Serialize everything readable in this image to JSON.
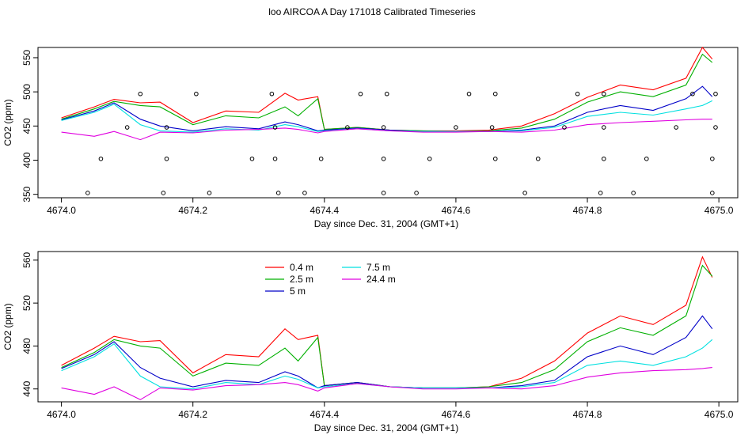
{
  "title": "loo AIRCOA A  Day 171018  Calibrated Timeseries",
  "colors": {
    "0.4 m": "#ff0000",
    "2.5 m": "#00b000",
    "5 m": "#0000c8",
    "7.5 m": "#00e0e0",
    "24.4 m": "#e000e0"
  },
  "chart_data": [
    {
      "type": "line",
      "xlabel": "Day since Dec. 31, 2004 (GMT+1)",
      "ylabel": "CO2 (ppm)",
      "xlim": [
        4674.0,
        4675.0
      ],
      "ylim": [
        345,
        565
      ],
      "xticks": [
        "4674.0",
        "4674.2",
        "4674.4",
        "4674.6",
        "4674.8",
        "4675.0"
      ],
      "yticks": [
        "350",
        "400",
        "450",
        "500",
        "550"
      ],
      "series": [
        {
          "name": "0.4 m",
          "x": [
            4674.0,
            4674.05,
            4674.08,
            4674.12,
            4674.15,
            4674.2,
            4674.25,
            4674.3,
            4674.34,
            4674.36,
            4674.39,
            4674.4,
            4674.45,
            4674.5,
            4674.55,
            4674.6,
            4674.65,
            4674.7,
            4674.75,
            4674.8,
            4674.85,
            4674.9,
            4674.95,
            4674.975,
            4674.99
          ],
          "y": [
            462,
            478,
            489,
            484,
            485,
            455,
            472,
            470,
            498,
            488,
            493,
            445,
            448,
            444,
            443,
            443,
            444,
            450,
            468,
            492,
            510,
            503,
            520,
            565,
            548
          ]
        },
        {
          "name": "2.5 m",
          "x": [
            4674.0,
            4674.05,
            4674.08,
            4674.12,
            4674.15,
            4674.2,
            4674.25,
            4674.3,
            4674.34,
            4674.36,
            4674.39,
            4674.4,
            4674.45,
            4674.5,
            4674.55,
            4674.6,
            4674.65,
            4674.7,
            4674.75,
            4674.8,
            4674.85,
            4674.9,
            4674.95,
            4674.975,
            4674.99
          ],
          "y": [
            460,
            475,
            486,
            480,
            478,
            452,
            465,
            462,
            478,
            465,
            490,
            445,
            448,
            444,
            443,
            442,
            443,
            447,
            460,
            485,
            500,
            493,
            510,
            555,
            543
          ]
        },
        {
          "name": "5 m",
          "x": [
            4674.0,
            4674.05,
            4674.08,
            4674.12,
            4674.15,
            4674.2,
            4674.25,
            4674.3,
            4674.34,
            4674.36,
            4674.39,
            4674.4,
            4674.45,
            4674.5,
            4674.55,
            4674.6,
            4674.65,
            4674.7,
            4674.75,
            4674.8,
            4674.85,
            4674.9,
            4674.95,
            4674.975,
            4674.99
          ],
          "y": [
            459,
            472,
            484,
            460,
            450,
            443,
            449,
            446,
            456,
            452,
            443,
            444,
            447,
            444,
            442,
            442,
            442,
            444,
            450,
            470,
            480,
            473,
            490,
            508,
            493
          ]
        },
        {
          "name": "7.5 m",
          "x": [
            4674.0,
            4674.05,
            4674.08,
            4674.12,
            4674.15,
            4674.2,
            4674.25,
            4674.3,
            4674.34,
            4674.36,
            4674.39,
            4674.4,
            4674.45,
            4674.5,
            4674.55,
            4674.6,
            4674.65,
            4674.7,
            4674.75,
            4674.8,
            4674.85,
            4674.9,
            4674.95,
            4674.975,
            4674.99
          ],
          "y": [
            458,
            470,
            482,
            452,
            443,
            441,
            446,
            444,
            452,
            449,
            442,
            443,
            446,
            443,
            442,
            442,
            442,
            443,
            448,
            464,
            470,
            466,
            475,
            480,
            487
          ]
        },
        {
          "name": "24.4 m",
          "x": [
            4674.0,
            4674.05,
            4674.08,
            4674.12,
            4674.15,
            4674.2,
            4674.25,
            4674.3,
            4674.34,
            4674.36,
            4674.39,
            4674.4,
            4674.45,
            4674.5,
            4674.55,
            4674.6,
            4674.65,
            4674.7,
            4674.75,
            4674.8,
            4674.85,
            4674.9,
            4674.95,
            4674.975,
            4674.99
          ],
          "y": [
            441,
            435,
            442,
            430,
            441,
            440,
            444,
            445,
            447,
            445,
            440,
            442,
            446,
            443,
            441,
            441,
            442,
            441,
            444,
            452,
            455,
            457,
            459,
            460,
            460
          ]
        }
      ],
      "points": {
        "x": [
          4674.04,
          4674.06,
          4674.1,
          4674.12,
          4674.155,
          4674.16,
          4674.16,
          4674.205,
          4674.225,
          4674.29,
          4674.32,
          4674.325,
          4674.325,
          4674.33,
          4674.37,
          4674.395,
          4674.435,
          4674.455,
          4674.49,
          4674.49,
          4674.49,
          4674.495,
          4674.54,
          4674.56,
          4674.6,
          4674.62,
          4674.655,
          4674.66,
          4674.66,
          4674.705,
          4674.725,
          4674.765,
          4674.785,
          4674.82,
          4674.825,
          4674.825,
          4674.825,
          4674.87,
          4674.89,
          4674.935,
          4674.96,
          4674.99,
          4674.99,
          4674.995,
          4674.995
        ],
        "y": [
          352,
          402,
          448,
          497,
          352,
          402,
          448,
          497,
          352,
          402,
          497,
          448,
          402,
          352,
          352,
          402,
          448,
          497,
          352,
          402,
          448,
          497,
          352,
          402,
          448,
          497,
          448,
          497,
          402,
          352,
          402,
          448,
          497,
          352,
          402,
          448,
          497,
          352,
          402,
          448,
          497,
          352,
          402,
          448,
          497
        ]
      }
    },
    {
      "type": "line",
      "xlabel": "Day since Dec. 31, 2004 (GMT+1)",
      "ylabel": "CO2 (ppm)",
      "xlim": [
        4674.0,
        4675.0
      ],
      "ylim": [
        428,
        568
      ],
      "xticks": [
        "4674.0",
        "4674.2",
        "4674.4",
        "4674.6",
        "4674.8",
        "4675.0"
      ],
      "yticks": [
        "440",
        "480",
        "520",
        "560"
      ],
      "legend": [
        "0.4 m",
        "2.5 m",
        "5 m",
        "7.5 m",
        "24.4 m"
      ],
      "series": [
        {
          "name": "0.4 m",
          "x": [
            4674.0,
            4674.05,
            4674.08,
            4674.12,
            4674.15,
            4674.2,
            4674.25,
            4674.3,
            4674.34,
            4674.36,
            4674.39,
            4674.4,
            4674.45,
            4674.5,
            4674.55,
            4674.6,
            4674.65,
            4674.7,
            4674.75,
            4674.8,
            4674.85,
            4674.9,
            4674.95,
            4674.975,
            4674.99
          ],
          "y": [
            462,
            478,
            489,
            484,
            485,
            455,
            472,
            470,
            496,
            486,
            490,
            443,
            446,
            442,
            441,
            441,
            442,
            450,
            466,
            492,
            508,
            500,
            518,
            563,
            544
          ]
        },
        {
          "name": "2.5 m",
          "x": [
            4674.0,
            4674.05,
            4674.08,
            4674.12,
            4674.15,
            4674.2,
            4674.25,
            4674.3,
            4674.34,
            4674.36,
            4674.39,
            4674.4,
            4674.45,
            4674.5,
            4674.55,
            4674.6,
            4674.65,
            4674.7,
            4674.75,
            4674.8,
            4674.85,
            4674.9,
            4674.95,
            4674.975,
            4674.99
          ],
          "y": [
            460,
            474,
            486,
            480,
            478,
            452,
            464,
            462,
            478,
            466,
            488,
            443,
            446,
            442,
            441,
            441,
            442,
            446,
            458,
            484,
            497,
            490,
            508,
            555,
            545
          ]
        },
        {
          "name": "5 m",
          "x": [
            4674.0,
            4674.05,
            4674.08,
            4674.12,
            4674.15,
            4674.2,
            4674.25,
            4674.3,
            4674.34,
            4674.36,
            4674.39,
            4674.4,
            4674.45,
            4674.5,
            4674.55,
            4674.6,
            4674.65,
            4674.7,
            4674.75,
            4674.8,
            4674.85,
            4674.9,
            4674.95,
            4674.975,
            4674.99
          ],
          "y": [
            459,
            472,
            484,
            460,
            450,
            442,
            448,
            446,
            456,
            452,
            441,
            443,
            446,
            442,
            441,
            441,
            441,
            443,
            448,
            470,
            480,
            472,
            488,
            508,
            496
          ]
        },
        {
          "name": "7.5 m",
          "x": [
            4674.0,
            4674.05,
            4674.08,
            4674.12,
            4674.15,
            4674.2,
            4674.25,
            4674.3,
            4674.34,
            4674.36,
            4674.39,
            4674.4,
            4674.45,
            4674.5,
            4674.55,
            4674.6,
            4674.65,
            4674.7,
            4674.75,
            4674.8,
            4674.85,
            4674.9,
            4674.95,
            4674.975,
            4674.99
          ],
          "y": [
            457,
            470,
            482,
            452,
            442,
            440,
            446,
            444,
            452,
            449,
            441,
            442,
            445,
            442,
            441,
            441,
            441,
            442,
            446,
            462,
            466,
            462,
            470,
            478,
            486
          ]
        },
        {
          "name": "24.4 m",
          "x": [
            4674.0,
            4674.05,
            4674.08,
            4674.12,
            4674.15,
            4674.2,
            4674.25,
            4674.3,
            4674.34,
            4674.36,
            4674.39,
            4674.4,
            4674.45,
            4674.5,
            4674.55,
            4674.6,
            4674.65,
            4674.7,
            4674.75,
            4674.8,
            4674.85,
            4674.9,
            4674.95,
            4674.975,
            4674.99
          ],
          "y": [
            441,
            435,
            442,
            430,
            441,
            439,
            443,
            444,
            446,
            444,
            438,
            441,
            445,
            442,
            440,
            440,
            441,
            440,
            443,
            451,
            455,
            457,
            458,
            459,
            460
          ]
        }
      ]
    }
  ]
}
